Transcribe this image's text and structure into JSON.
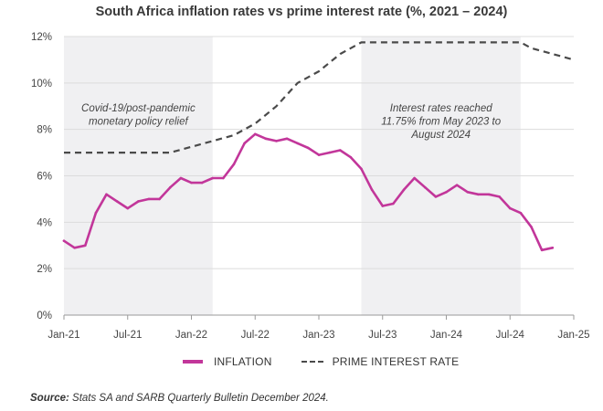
{
  "chart_data": {
    "type": "line",
    "title": "South Africa inflation rates vs prime interest rate (%, 2021 – 2024)",
    "y_ticks": [
      "0%",
      "2%",
      "4%",
      "6%",
      "8%",
      "10%",
      "12%"
    ],
    "ylim": [
      0,
      12
    ],
    "x_ticks": [
      "Jan-21",
      "Jul-21",
      "Jan-22",
      "Jul-22",
      "Jan-23",
      "Jul-23",
      "Jan-24",
      "Jul-24",
      "Jan-25"
    ],
    "x_range": [
      "2021-01",
      "2025-01"
    ],
    "grid": "horizontal",
    "legend_position": "bottom",
    "shaded_regions": [
      {
        "start": "2021-01",
        "end": "2022-03",
        "text": [
          "Covid-19/post-pandemic",
          "monetary policy relief"
        ]
      },
      {
        "start": "2023-05",
        "end": "2024-08",
        "text": [
          "Interest rates reached",
          "11.75% from May 2023 to",
          "August 2024"
        ]
      }
    ],
    "series": [
      {
        "name": "INFLATION",
        "color": "#c2369a",
        "style": "solid",
        "x": [
          "2021-01",
          "2021-02",
          "2021-03",
          "2021-04",
          "2021-05",
          "2021-06",
          "2021-07",
          "2021-08",
          "2021-09",
          "2021-10",
          "2021-11",
          "2021-12",
          "2022-01",
          "2022-02",
          "2022-03",
          "2022-04",
          "2022-05",
          "2022-06",
          "2022-07",
          "2022-08",
          "2022-09",
          "2022-10",
          "2022-11",
          "2022-12",
          "2023-01",
          "2023-02",
          "2023-03",
          "2023-04",
          "2023-05",
          "2023-06",
          "2023-07",
          "2023-08",
          "2023-09",
          "2023-10",
          "2023-11",
          "2023-12",
          "2024-01",
          "2024-02",
          "2024-03",
          "2024-04",
          "2024-05",
          "2024-06",
          "2024-07",
          "2024-08",
          "2024-09",
          "2024-10",
          "2024-11"
        ],
        "values": [
          3.2,
          2.9,
          3.0,
          4.4,
          5.2,
          4.9,
          4.6,
          4.9,
          5.0,
          5.0,
          5.5,
          5.9,
          5.7,
          5.7,
          5.9,
          5.9,
          6.5,
          7.4,
          7.8,
          7.6,
          7.5,
          7.6,
          7.4,
          7.2,
          6.9,
          7.0,
          7.1,
          6.8,
          6.3,
          5.4,
          4.7,
          4.8,
          5.4,
          5.9,
          5.5,
          5.1,
          5.3,
          5.6,
          5.3,
          5.2,
          5.2,
          5.1,
          4.6,
          4.4,
          3.8,
          2.8,
          2.9
        ]
      },
      {
        "name": "PRIME INTEREST RATE",
        "color": "#4a4a4a",
        "style": "dashed",
        "x": [
          "2021-01",
          "2021-11",
          "2022-01",
          "2022-03",
          "2022-05",
          "2022-07",
          "2022-09",
          "2022-11",
          "2023-01",
          "2023-03",
          "2023-05",
          "2023-07",
          "2024-08",
          "2024-09",
          "2024-11",
          "2025-01"
        ],
        "values": [
          7.0,
          7.0,
          7.25,
          7.5,
          7.75,
          8.25,
          9.0,
          10.0,
          10.5,
          11.25,
          11.75,
          11.75,
          11.75,
          11.5,
          11.25,
          11.0
        ]
      }
    ]
  },
  "legend": {
    "inflation_label": "INFLATION",
    "prime_label": "PRIME INTEREST RATE"
  },
  "source": {
    "label": "Source:",
    "text": " Stats SA and SARB Quarterly Bulletin December 2024."
  },
  "colors": {
    "inflation": "#c2369a",
    "prime": "#4a4a4a",
    "shade": "#f0f0f2",
    "grid": "#dcdcdc"
  }
}
